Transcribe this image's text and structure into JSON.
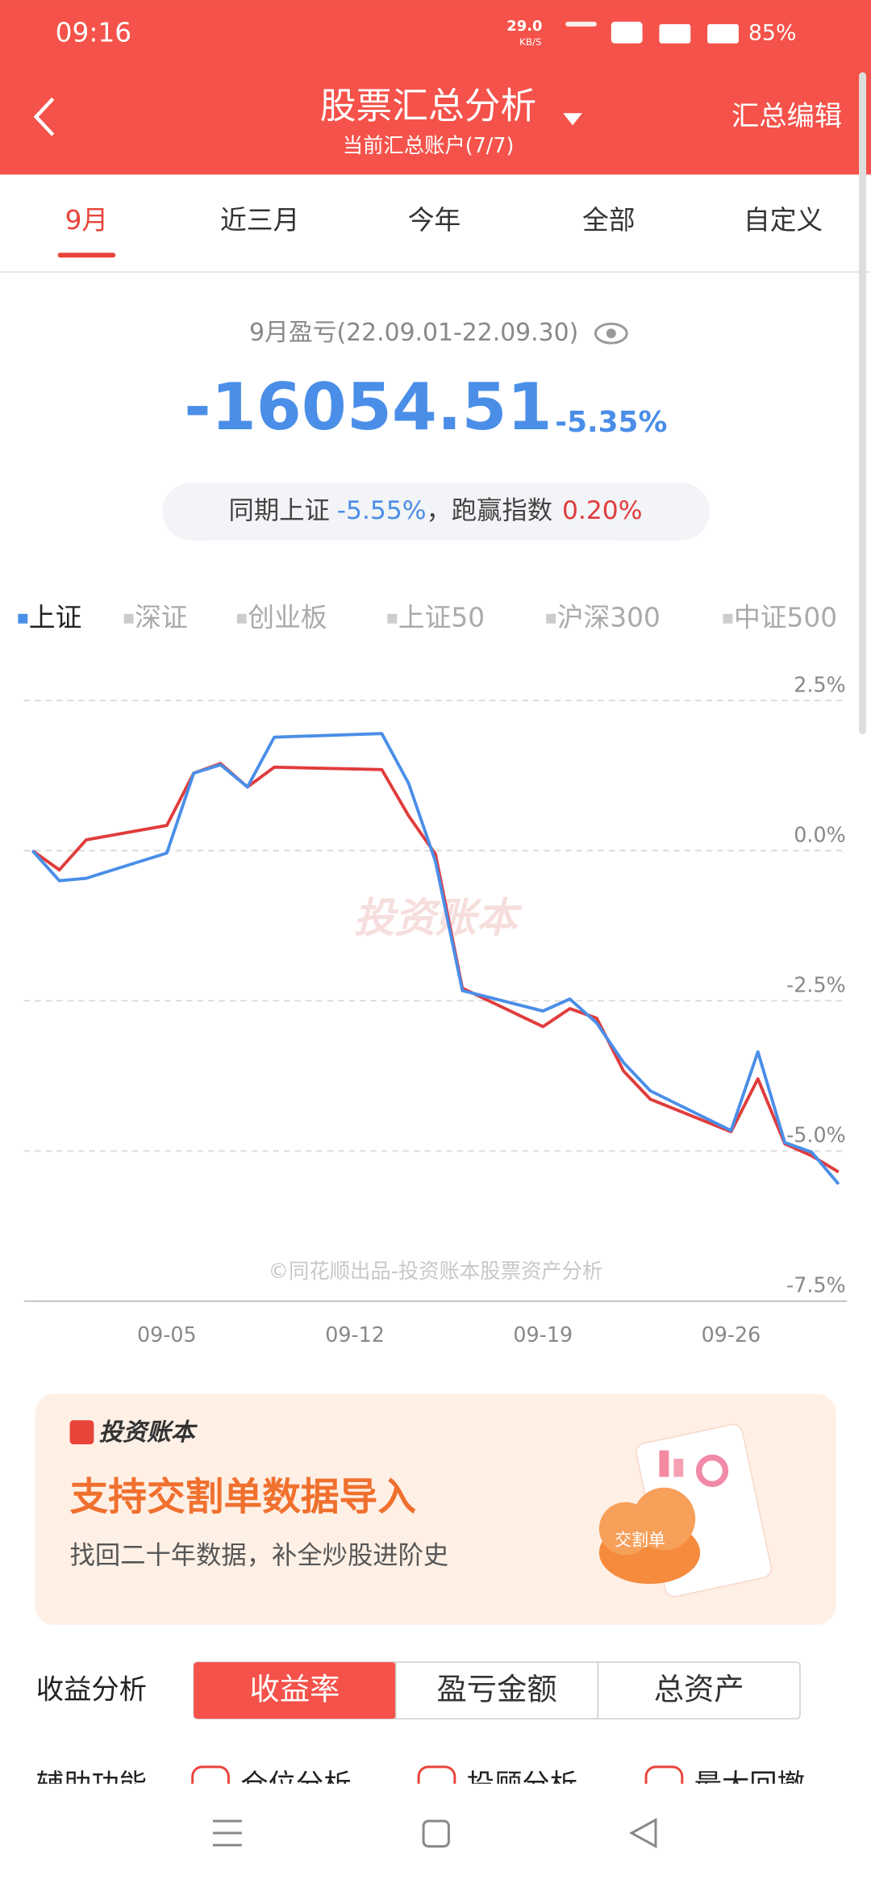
{
  "status_bar": {
    "time": "09:16",
    "speed": "29.0",
    "speed_unit": "KB/S",
    "battery": "85%"
  },
  "header": {
    "title": "股票汇总分析",
    "subtitle": "当前汇总账户(7/7)",
    "action": "汇总编辑"
  },
  "tabs": [
    "9月",
    "近三月",
    "今年",
    "全部",
    "自定义"
  ],
  "summary": {
    "period": "9月盈亏(22.09.01-22.09.30)",
    "amount": "-16054.51",
    "rate": "-5.35%",
    "compare_prefix": "同期上证",
    "compare_value": "-5.55%",
    "compare_mid": "，跑赢指数",
    "compare_diff": "0.20%"
  },
  "index_options": [
    "深证",
    "创业板",
    "上证50",
    "沪深300",
    "中证500"
  ],
  "chart_data": {
    "type": "line",
    "x": [
      "08-31",
      "09-01",
      "09-02",
      "09-05",
      "09-06",
      "09-07",
      "09-08",
      "09-09",
      "09-13",
      "09-14",
      "09-15",
      "09-16",
      "09-19",
      "09-20",
      "09-21",
      "09-22",
      "09-23",
      "09-26",
      "09-27",
      "09-28",
      "09-29",
      "09-30"
    ],
    "series": [
      {
        "name": "上证",
        "color": "#4a8ee8",
        "values": [
          0,
          -0.5,
          -0.46,
          -0.04,
          1.29,
          1.43,
          1.06,
          1.89,
          1.95,
          1.12,
          -0.18,
          -2.33,
          -2.67,
          -2.47,
          -2.87,
          -3.53,
          -4.0,
          -4.66,
          -3.35,
          -4.86,
          -5.02,
          -5.55
        ]
      },
      {
        "color": "#e03c3c",
        "values": [
          0,
          -0.32,
          0.18,
          0.42,
          1.29,
          1.45,
          1.06,
          1.39,
          1.35,
          0.58,
          -0.06,
          -2.29,
          -2.93,
          -2.63,
          -2.79,
          -3.67,
          -4.14,
          -4.68,
          -3.8,
          -4.88,
          -5.08,
          -5.35
        ]
      }
    ],
    "xlim": [
      "08-31",
      "09-30"
    ],
    "xticks": [
      "09-05",
      "09-12",
      "09-19",
      "09-26"
    ],
    "ylim": [
      -7.5,
      2.5
    ],
    "yticks": [
      {
        "value": 2.5,
        "label": "2.5%"
      },
      {
        "value": 0,
        "label": "0.0%"
      },
      {
        "value": -2.5,
        "label": "-2.5%"
      },
      {
        "value": -5,
        "label": "-5.0%"
      },
      {
        "value": -7.5,
        "label": "-7.5%"
      }
    ],
    "grid": true,
    "watermark": "投资账本",
    "footnote": "©同花顺出品-投资账本股票资产分析"
  },
  "banner": {
    "brand": "投资账本",
    "headline": "支持交割单数据导入",
    "subline": "找回二十年数据，补全炒股进阶史",
    "badge": "交割单"
  },
  "analysis": {
    "label": "收益分析",
    "options": [
      "收益率",
      "盈亏金额",
      "总资产"
    ]
  },
  "aux": {
    "label": "辅助功能",
    "options": [
      "仓位分析",
      "投顾分析",
      "最大回撤"
    ]
  }
}
